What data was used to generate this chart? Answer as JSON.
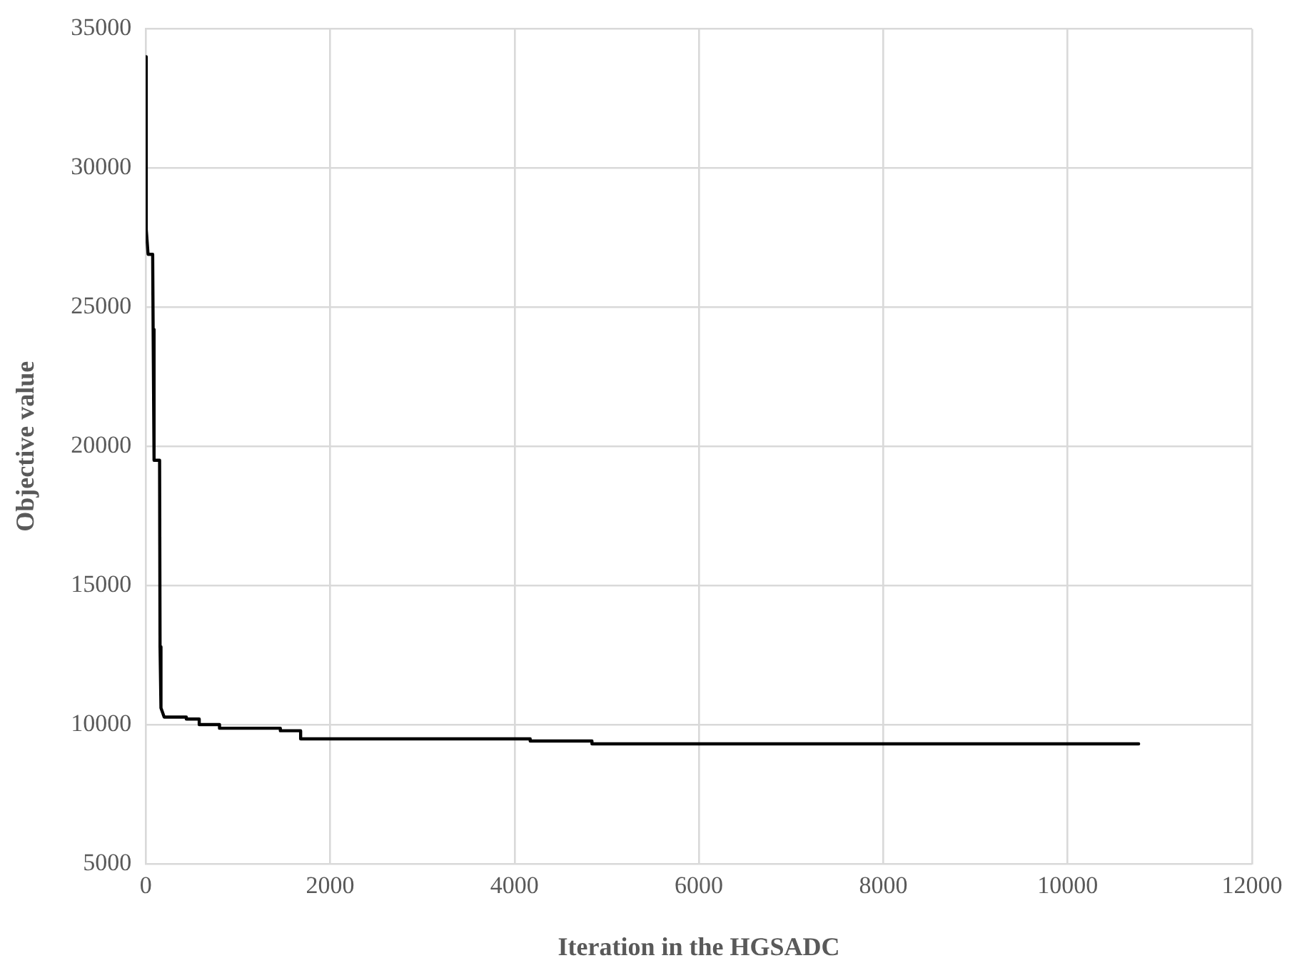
{
  "chart_data": {
    "type": "line",
    "xlabel": "Iteration in the HGSADC",
    "ylabel": "Objective value",
    "x": [
      0,
      5,
      25,
      75,
      80,
      90,
      150,
      155,
      165,
      200,
      440,
      440,
      580,
      580,
      800,
      800,
      1460,
      1460,
      1680,
      1680,
      4170,
      4170,
      4840,
      4840,
      10770
    ],
    "series": [
      {
        "color": "#000000",
        "values": [
          34000,
          27800,
          26900,
          26900,
          24200,
          19500,
          19500,
          12800,
          10600,
          10270,
          10270,
          10200,
          10200,
          10000,
          10000,
          9870,
          9870,
          9780,
          9780,
          9490,
          9490,
          9410,
          9410,
          9310,
          9310
        ]
      }
    ],
    "xlim": [
      0,
      12000
    ],
    "xticks": [
      0,
      2000,
      4000,
      6000,
      8000,
      10000,
      12000
    ],
    "ylim": [
      5000,
      35000
    ],
    "yticks": [
      5000,
      10000,
      15000,
      20000,
      25000,
      30000,
      35000
    ],
    "grid": true,
    "legend": false,
    "marker": "none",
    "line_style": "solid"
  }
}
